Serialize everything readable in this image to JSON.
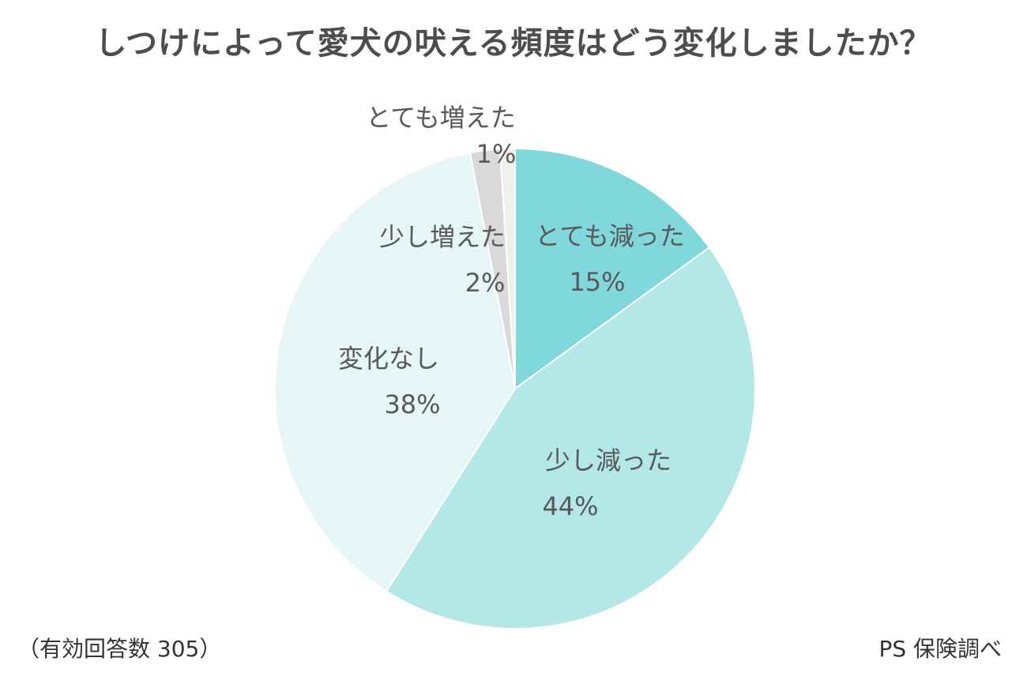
{
  "chart_data": {
    "type": "pie",
    "title": "しつけによって愛犬の吠える頻度はどう変化しましたか？",
    "categories": [
      "とても減った",
      "少し減った",
      "変化なし",
      "少し増えた",
      "とても増えた"
    ],
    "values": [
      15,
      44,
      38,
      2,
      1
    ],
    "value_labels": [
      "15%",
      "44%",
      "38%",
      "2%",
      "1%"
    ],
    "colors": [
      "#80d8dc",
      "#b3e7e8",
      "#e6f6f6",
      "#d9d9d9",
      "#efefef"
    ]
  },
  "footer": {
    "sample_note": "（有効回答数 305）",
    "source": "PS 保険調べ"
  }
}
